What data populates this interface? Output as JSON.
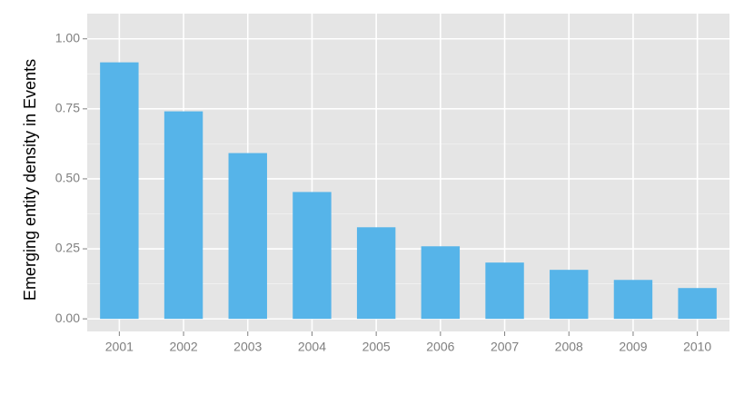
{
  "chart_data": {
    "type": "bar",
    "y_label": "Emerging entity density in Events",
    "categories": [
      "2001",
      "2002",
      "2003",
      "2004",
      "2005",
      "2006",
      "2007",
      "2008",
      "2009",
      "2010"
    ],
    "values": [
      0.916,
      0.741,
      0.592,
      0.453,
      0.327,
      0.259,
      0.201,
      0.175,
      0.139,
      0.11
    ],
    "color": "#56B4E9",
    "ylim": [
      -0.045,
      1.09
    ],
    "yticks": [
      {
        "value": 0,
        "label": "0.00"
      },
      {
        "value": 0.25,
        "label": "0.25"
      },
      {
        "value": 0.5,
        "label": "0.50"
      },
      {
        "value": 0.75,
        "label": "0.75"
      },
      {
        "value": 1,
        "label": "1.00"
      }
    ],
    "minor_yticks": [
      0.125,
      0.375,
      0.625,
      0.875
    ],
    "grid": true
  }
}
